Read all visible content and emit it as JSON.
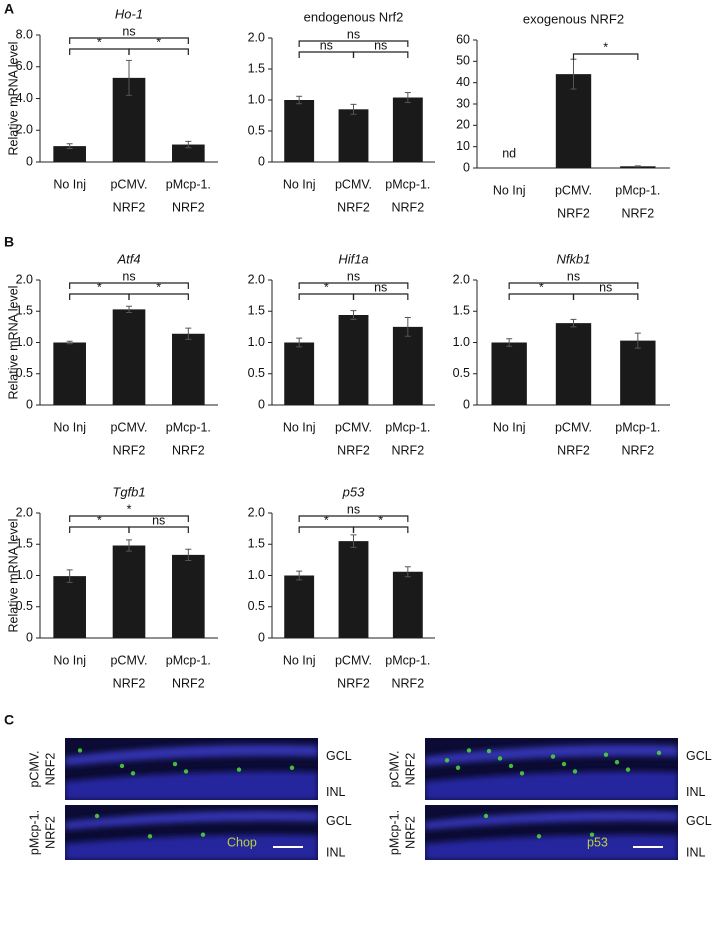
{
  "panel_labels": [
    "A",
    "B",
    "C"
  ],
  "chart_data": [
    {
      "type": "bar",
      "title": "Ho-1",
      "title_italic": true,
      "ylabel": "Relative mRNA level",
      "categories": [
        [
          "No Inj"
        ],
        [
          "pCMV.",
          "NRF2"
        ],
        [
          "pMcp-1.",
          "NRF2"
        ]
      ],
      "values": [
        1.0,
        5.3,
        1.1
      ],
      "errors": [
        0.15,
        1.1,
        0.2
      ],
      "color": "#1a1a1a",
      "ylim": [
        0,
        8
      ],
      "yticks": [
        0,
        {
          "value": 2,
          "label": "2.0"
        },
        {
          "value": 4,
          "label": "4.0"
        },
        {
          "value": 6,
          "label": "6.0"
        },
        {
          "value": 8,
          "label": "8.0"
        }
      ],
      "comparisons": [
        {
          "groups": [
            0,
            1
          ],
          "label": "*"
        },
        {
          "groups": [
            1,
            2
          ],
          "label": "*"
        },
        {
          "groups": [
            0,
            2
          ],
          "label": "ns"
        }
      ]
    },
    {
      "type": "bar",
      "title": "endogenous Nrf2",
      "title_italic": false,
      "categories": [
        [
          "No Inj"
        ],
        [
          "pCMV.",
          "NRF2"
        ],
        [
          "pMcp-1.",
          "NRF2"
        ]
      ],
      "values": [
        1.0,
        0.85,
        1.04
      ],
      "errors": [
        0.06,
        0.08,
        0.08
      ],
      "color": "#1a1a1a",
      "ylim": [
        0,
        2
      ],
      "yticks": [
        0,
        0.5,
        {
          "value": 1,
          "label": "1.0"
        },
        1.5,
        {
          "value": 2,
          "label": "2.0"
        }
      ],
      "comparisons": [
        {
          "groups": [
            0,
            1
          ],
          "label": "ns"
        },
        {
          "groups": [
            1,
            2
          ],
          "label": "ns"
        },
        {
          "groups": [
            0,
            2
          ],
          "label": "ns"
        }
      ]
    },
    {
      "type": "bar",
      "title": "exogenous NRF2",
      "title_italic": false,
      "categories": [
        [
          "No Inj"
        ],
        [
          "pCMV.",
          "NRF2"
        ],
        [
          "pMcp-1.",
          "NRF2"
        ]
      ],
      "values": [
        null,
        44,
        0.8
      ],
      "errors": [
        null,
        7,
        0.2
      ],
      "value_labels": [
        "nd",
        null,
        null
      ],
      "color": "#1a1a1a",
      "ylim": [
        0,
        60
      ],
      "yticks": [
        0,
        10,
        20,
        30,
        40,
        50,
        60
      ],
      "comparisons": [
        {
          "groups": [
            1,
            2
          ],
          "label": "*"
        }
      ]
    },
    {
      "type": "bar",
      "title": "Atf4",
      "title_italic": true,
      "ylabel": "Relative mRNA level",
      "categories": [
        [
          "No Inj"
        ],
        [
          "pCMV.",
          "NRF2"
        ],
        [
          "pMcp-1.",
          "NRF2"
        ]
      ],
      "values": [
        1.0,
        1.53,
        1.14
      ],
      "errors": [
        0.02,
        0.05,
        0.09
      ],
      "color": "#1a1a1a",
      "ylim": [
        0,
        2
      ],
      "yticks": [
        0,
        0.5,
        {
          "value": 1,
          "label": "1.0"
        },
        1.5,
        {
          "value": 2,
          "label": "2.0"
        }
      ],
      "comparisons": [
        {
          "groups": [
            0,
            1
          ],
          "label": "*"
        },
        {
          "groups": [
            1,
            2
          ],
          "label": "*"
        },
        {
          "groups": [
            0,
            2
          ],
          "label": "ns"
        }
      ]
    },
    {
      "type": "bar",
      "title": "Hif1a",
      "title_italic": true,
      "categories": [
        [
          "No Inj"
        ],
        [
          "pCMV.",
          "NRF2"
        ],
        [
          "pMcp-1.",
          "NRF2"
        ]
      ],
      "values": [
        1.0,
        1.44,
        1.25
      ],
      "errors": [
        0.07,
        0.07,
        0.15
      ],
      "color": "#1a1a1a",
      "ylim": [
        0,
        2
      ],
      "yticks": [
        0,
        0.5,
        {
          "value": 1,
          "label": "1.0"
        },
        1.5,
        {
          "value": 2,
          "label": "2.0"
        }
      ],
      "comparisons": [
        {
          "groups": [
            0,
            1
          ],
          "label": "*"
        },
        {
          "groups": [
            1,
            2
          ],
          "label": "ns"
        },
        {
          "groups": [
            0,
            2
          ],
          "label": "ns"
        }
      ]
    },
    {
      "type": "bar",
      "title": "Nfkb1",
      "title_italic": true,
      "categories": [
        [
          "No Inj"
        ],
        [
          "pCMV.",
          "NRF2"
        ],
        [
          "pMcp-1.",
          "NRF2"
        ]
      ],
      "values": [
        1.0,
        1.31,
        1.03
      ],
      "errors": [
        0.06,
        0.06,
        0.12
      ],
      "color": "#1a1a1a",
      "ylim": [
        0,
        2
      ],
      "yticks": [
        0,
        0.5,
        {
          "value": 1,
          "label": "1.0"
        },
        1.5,
        {
          "value": 2,
          "label": "2.0"
        }
      ],
      "comparisons": [
        {
          "groups": [
            0,
            1
          ],
          "label": "*"
        },
        {
          "groups": [
            1,
            2
          ],
          "label": "ns"
        },
        {
          "groups": [
            0,
            2
          ],
          "label": "ns"
        }
      ]
    },
    {
      "type": "bar",
      "title": "Tgfb1",
      "title_italic": true,
      "ylabel": "Relative mRNA level",
      "categories": [
        [
          "No Inj"
        ],
        [
          "pCMV.",
          "NRF2"
        ],
        [
          "pMcp-1.",
          "NRF2"
        ]
      ],
      "values": [
        0.99,
        1.48,
        1.33
      ],
      "errors": [
        0.1,
        0.09,
        0.09
      ],
      "color": "#1a1a1a",
      "ylim": [
        0,
        2
      ],
      "yticks": [
        0,
        0.5,
        {
          "value": 1,
          "label": "1.0"
        },
        1.5,
        {
          "value": 2,
          "label": "2.0"
        }
      ],
      "comparisons": [
        {
          "groups": [
            0,
            1
          ],
          "label": "*"
        },
        {
          "groups": [
            1,
            2
          ],
          "label": "ns"
        },
        {
          "groups": [
            0,
            2
          ],
          "label": "*"
        }
      ]
    },
    {
      "type": "bar",
      "title": "p53",
      "title_italic": true,
      "categories": [
        [
          "No Inj"
        ],
        [
          "pCMV.",
          "NRF2"
        ],
        [
          "pMcp-1.",
          "NRF2"
        ]
      ],
      "values": [
        1.0,
        1.55,
        1.06
      ],
      "errors": [
        0.07,
        0.1,
        0.08
      ],
      "color": "#1a1a1a",
      "ylim": [
        0,
        2
      ],
      "yticks": [
        0,
        0.5,
        {
          "value": 1,
          "label": "1.0"
        },
        1.5,
        {
          "value": 2,
          "label": "2.0"
        }
      ],
      "comparisons": [
        {
          "groups": [
            0,
            1
          ],
          "label": "*"
        },
        {
          "groups": [
            1,
            2
          ],
          "label": "*"
        },
        {
          "groups": [
            0,
            2
          ],
          "label": "ns"
        }
      ]
    }
  ],
  "micrographs": {
    "rows": [
      [
        "pCMV.",
        "NRF2"
      ],
      [
        "pMcp-1.",
        "NRF2"
      ]
    ],
    "layers": [
      "GCL",
      "INL"
    ],
    "stains": [
      "Chop",
      "p53"
    ]
  }
}
